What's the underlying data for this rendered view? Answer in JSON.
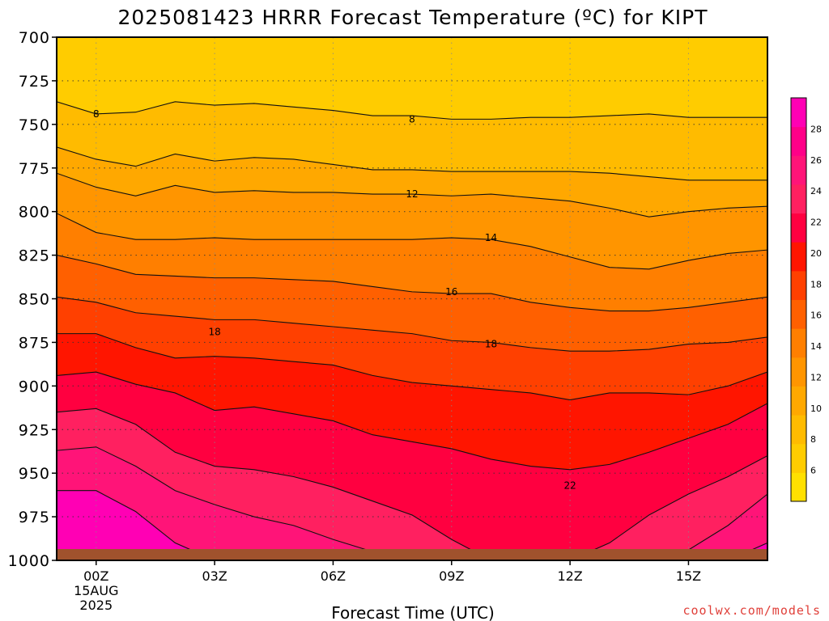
{
  "page_title": "2025081423 HRRR Forecast Temperature (ºC) for KIPT",
  "credit": "coolwx.com/models",
  "chart_data": {
    "type": "contour",
    "title": "2025081423 HRRR Forecast Temperature (ºC) for KIPT",
    "xlabel": "Forecast Time (UTC)",
    "ylabel": "",
    "x_hours": [
      -1,
      0,
      1,
      2,
      3,
      4,
      5,
      6,
      7,
      8,
      9,
      10,
      11,
      12,
      13,
      14,
      15,
      16,
      17
    ],
    "x_ticks": [
      {
        "hour": 0,
        "label": "00Z",
        "sublabels": [
          "15AUG",
          "2025"
        ]
      },
      {
        "hour": 3,
        "label": "03Z",
        "sublabels": []
      },
      {
        "hour": 6,
        "label": "06Z",
        "sublabels": []
      },
      {
        "hour": 9,
        "label": "09Z",
        "sublabels": []
      },
      {
        "hour": 12,
        "label": "12Z",
        "sublabels": []
      },
      {
        "hour": 15,
        "label": "15Z",
        "sublabels": []
      }
    ],
    "x_range": [
      -1,
      17
    ],
    "y_ticks": [
      700,
      725,
      750,
      775,
      800,
      825,
      850,
      875,
      900,
      925,
      950,
      975,
      1000
    ],
    "y_range": [
      700,
      1000
    ],
    "y_inverted": true,
    "grid": true,
    "colorbar_levels": [
      4,
      6,
      8,
      10,
      12,
      14,
      16,
      18,
      20,
      22,
      24,
      26,
      28,
      30
    ],
    "colorbar_tick_labels": [
      6,
      8,
      10,
      12,
      14,
      16,
      18,
      20,
      22,
      24,
      26,
      28
    ],
    "colors": [
      "#ffe000",
      "#ffcc00",
      "#ffbb00",
      "#ffa800",
      "#ff9500",
      "#ff7f00",
      "#ff6000",
      "#ff4000",
      "#ff1500",
      "#ff0040",
      "#ff2060",
      "#ff1478",
      "#ff0088",
      "#ff00b4"
    ],
    "ground_color": "#a0522d",
    "contour_levels": [
      6,
      8,
      10,
      12,
      14,
      16,
      18,
      20,
      22,
      24,
      26,
      28
    ],
    "contour_labels": [
      {
        "level": 8,
        "hour": 0,
        "p": 744
      },
      {
        "level": 8,
        "hour": 8,
        "p": 747
      },
      {
        "level": 12,
        "hour": 8,
        "p": 790
      },
      {
        "level": 14,
        "hour": 10,
        "p": 815
      },
      {
        "level": 16,
        "hour": 9,
        "p": 846
      },
      {
        "level": 18,
        "hour": 3,
        "p": 869
      },
      {
        "level": 18,
        "hour": 10,
        "p": 876
      },
      {
        "level": 22,
        "hour": 12,
        "p": 957
      }
    ],
    "isolines": [
      {
        "level": 6,
        "p": [
          700,
          700,
          700,
          700,
          700,
          700,
          700,
          700,
          700,
          700,
          700,
          700,
          700,
          700,
          700,
          700,
          700,
          700,
          700
        ]
      },
      {
        "level": 8,
        "p": [
          737,
          744,
          743,
          737,
          739,
          738,
          740,
          742,
          745,
          745,
          747,
          747,
          746,
          746,
          745,
          744,
          746,
          746,
          746
        ]
      },
      {
        "level": 10,
        "p": [
          763,
          770,
          774,
          767,
          771,
          769,
          770,
          773,
          776,
          776,
          777,
          777,
          777,
          777,
          778,
          780,
          782,
          782,
          782
        ]
      },
      {
        "level": 12,
        "p": [
          778,
          786,
          791,
          785,
          789,
          788,
          789,
          789,
          790,
          790,
          791,
          790,
          792,
          794,
          798,
          803,
          800,
          798,
          797
        ]
      },
      {
        "level": 14,
        "p": [
          801,
          812,
          816,
          816,
          815,
          816,
          816,
          816,
          816,
          816,
          815,
          816,
          820,
          826,
          832,
          833,
          828,
          824,
          822
        ]
      },
      {
        "level": 16,
        "p": [
          825,
          830,
          836,
          837,
          838,
          838,
          839,
          840,
          843,
          846,
          847,
          847,
          852,
          855,
          857,
          857,
          855,
          852,
          849
        ]
      },
      {
        "level": 18,
        "p": [
          849,
          852,
          858,
          860,
          862,
          862,
          864,
          866,
          868,
          870,
          874,
          875,
          878,
          880,
          880,
          879,
          876,
          875,
          872
        ]
      },
      {
        "level": 20,
        "p": [
          870,
          870,
          878,
          884,
          883,
          884,
          886,
          888,
          894,
          898,
          900,
          902,
          904,
          908,
          904,
          904,
          905,
          900,
          892
        ]
      },
      {
        "level": 22,
        "p": [
          894,
          892,
          899,
          904,
          914,
          912,
          916,
          920,
          928,
          932,
          936,
          942,
          946,
          948,
          945,
          938,
          930,
          922,
          910
        ]
      },
      {
        "level": 24,
        "p": [
          915,
          913,
          922,
          938,
          946,
          948,
          952,
          958,
          966,
          974,
          988,
          1000,
          1000,
          1000,
          990,
          974,
          962,
          952,
          940
        ]
      },
      {
        "level": 26,
        "p": [
          937,
          935,
          946,
          960,
          968,
          975,
          980,
          988,
          995,
          1000,
          1000,
          1000,
          1000,
          1000,
          1000,
          1000,
          994,
          980,
          962
        ]
      },
      {
        "level": 28,
        "p": [
          960,
          960,
          972,
          990,
          1000,
          1000,
          1000,
          1000,
          1000,
          1000,
          1000,
          1000,
          1000,
          1000,
          1000,
          1000,
          1000,
          1000,
          990
        ]
      }
    ]
  }
}
